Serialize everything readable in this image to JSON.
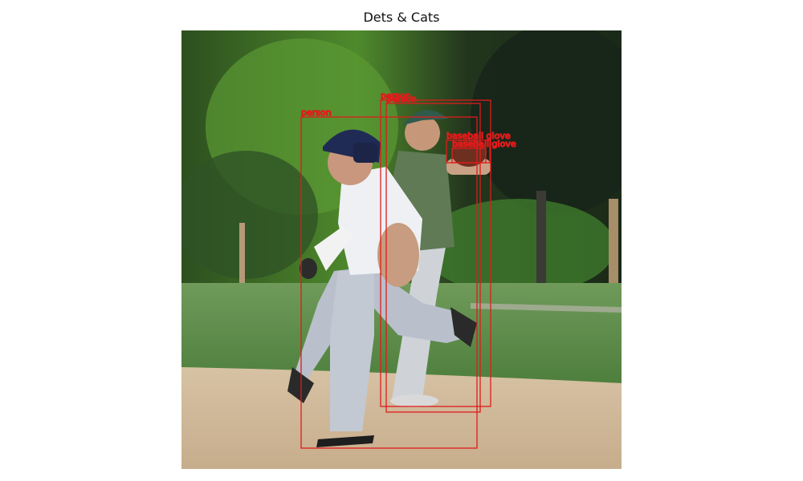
{
  "title": "Dets & Cats",
  "colors": {
    "box": "#e01b1b",
    "sky_trees_dark": "#1f3a19",
    "trees_light": "#4f8a2c",
    "grass": "#5f8e4b",
    "dirt": "#cdb79a"
  },
  "detections": [
    {
      "label": "person"
    },
    {
      "label": "person"
    },
    {
      "label": "person"
    },
    {
      "label": "baseball glove"
    },
    {
      "label": "baseball glove"
    }
  ]
}
